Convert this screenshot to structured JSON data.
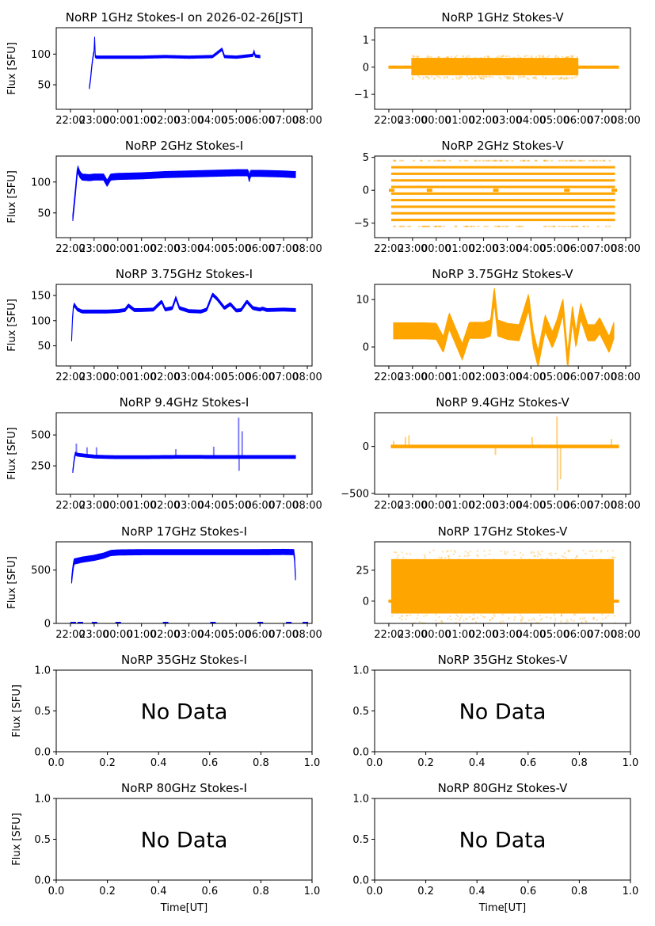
{
  "figure": {
    "date_label": "2026-02-26[JST]",
    "xlabel_bottom": "Time[UT]",
    "ylabel": "Flux [SFU]",
    "colors": {
      "stokes_i": "#0000ff",
      "stokes_v": "#ffa500",
      "axes": "#000000"
    },
    "time_ticks": [
      "22:00",
      "23:00",
      "00:00",
      "01:00",
      "02:00",
      "03:00",
      "04:00",
      "05:00",
      "06:00",
      "07:00",
      "08:00"
    ],
    "time_range_hours": [
      -2.6,
      8.2
    ],
    "no_data_text": "No Data"
  },
  "chart_data": [
    {
      "type": "scatter",
      "id": "1ghz-i",
      "title": "NoRP 1GHz Stokes-I on 2026-02-26[JST]",
      "ylabel": "Flux [SFU]",
      "xlabel": "",
      "ylim": [
        10,
        143
      ],
      "yticks": [
        50,
        100
      ],
      "color": "#0000ff",
      "x": [
        -1.2,
        -1.15,
        -1.1,
        -1.05,
        -1.0,
        -0.98,
        -0.95,
        -0.9,
        0,
        1,
        2,
        3,
        4,
        4.4,
        4.5,
        5,
        5.7,
        5.75,
        5.8,
        6.0
      ],
      "values": [
        45,
        60,
        80,
        95,
        105,
        128,
        96,
        95,
        95,
        95,
        96,
        95,
        96,
        108,
        96,
        95,
        98,
        104,
        97,
        96
      ],
      "band": 2
    },
    {
      "type": "scatter",
      "id": "1ghz-v",
      "title": "NoRP 1GHz Stokes-V",
      "ylabel": "",
      "xlabel": "",
      "ylim": [
        -1.55,
        1.45
      ],
      "yticks": [
        -1,
        0,
        1
      ],
      "color": "#ffa500",
      "x": [
        -2.0,
        -1.05,
        -1.05,
        6.0,
        6.0,
        7.7
      ],
      "values": [
        0,
        0,
        0,
        0,
        0,
        0
      ],
      "noisy_segment": {
        "from": -1.05,
        "to": 6.0,
        "center": 0.02,
        "half_width": 0.32
      },
      "band": 0.02
    },
    {
      "type": "scatter",
      "id": "2ghz-i",
      "title": "NoRP 2GHz Stokes-I",
      "ylabel": "Flux [SFU]",
      "xlabel": "",
      "ylim": [
        10,
        142
      ],
      "yticks": [
        50,
        100
      ],
      "color": "#0000ff",
      "x": [
        -1.9,
        -1.8,
        -1.7,
        -1.6,
        -1.5,
        -1.2,
        -1.0,
        -0.6,
        -0.45,
        -0.3,
        0,
        1,
        2,
        3,
        4,
        5,
        5.5,
        5.55,
        5.6,
        6,
        7,
        7.45,
        7.5
      ],
      "values": [
        42,
        80,
        122,
        112,
        108,
        107,
        108,
        108,
        98,
        108,
        109,
        110,
        112,
        113,
        114,
        115,
        115,
        105,
        114,
        114,
        113,
        112,
        112
      ],
      "band": 5
    },
    {
      "type": "scatter",
      "id": "2ghz-v",
      "title": "NoRP 2GHz Stokes-V",
      "ylabel": "",
      "xlabel": "",
      "ylim": [
        -7.2,
        5.2
      ],
      "yticks": [
        -5,
        0,
        5
      ],
      "color": "#ffa500",
      "levels": [
        -4.5,
        -3.5,
        -2.5,
        -1.5,
        -0.5,
        0.5,
        1.5,
        2.5,
        3.5
      ],
      "sparse_levels": [
        -5.5,
        4.5
      ],
      "x_range": [
        -1.9,
        7.55
      ],
      "values": [
        0,
        0,
        0,
        0,
        0
      ]
    },
    {
      "type": "scatter",
      "id": "3.75ghz-i",
      "title": "NoRP 3.75GHz Stokes-I",
      "ylabel": "Flux [SFU]",
      "xlabel": "",
      "ylim": [
        10,
        172
      ],
      "yticks": [
        50,
        100,
        150
      ],
      "color": "#0000ff",
      "x": [
        -1.95,
        -1.9,
        -1.85,
        -1.7,
        -1.5,
        -1,
        -0.5,
        0,
        0.3,
        0.45,
        0.7,
        1,
        1.5,
        1.85,
        2.0,
        2.3,
        2.45,
        2.6,
        3,
        3.5,
        3.75,
        4.0,
        4.2,
        4.5,
        4.75,
        5.0,
        5.2,
        5.45,
        5.7,
        6.0,
        6.1,
        6.3,
        7.0,
        7.5
      ],
      "values": [
        62,
        120,
        132,
        122,
        118,
        118,
        118,
        119,
        121,
        130,
        121,
        121,
        122,
        138,
        122,
        125,
        145,
        125,
        119,
        118,
        122,
        152,
        143,
        125,
        133,
        120,
        121,
        138,
        125,
        122,
        124,
        121,
        122,
        121
      ],
      "band": 3
    },
    {
      "type": "scatter",
      "id": "3.75ghz-v",
      "title": "NoRP 3.75GHz Stokes-V",
      "ylabel": "",
      "xlabel": "",
      "ylim": [
        -4,
        13.2
      ],
      "yticks": [
        0,
        10
      ],
      "color": "#ffa500",
      "x": [
        -1.8,
        -1.5,
        -1,
        -0.5,
        0,
        0.3,
        0.55,
        0.8,
        1.1,
        1.4,
        2.0,
        2.3,
        2.45,
        2.6,
        3.0,
        3.5,
        3.9,
        4.1,
        4.3,
        4.6,
        4.9,
        5.1,
        5.35,
        5.55,
        5.75,
        5.9,
        6.1,
        6.4,
        6.7,
        6.9,
        7.3,
        7.5
      ],
      "values": [
        3.4,
        3.4,
        3.4,
        3.4,
        3.3,
        0.5,
        5.5,
        2.5,
        -1,
        3.5,
        3.5,
        4,
        11,
        4,
        3.3,
        3,
        9.5,
        1.5,
        -2.5,
        5,
        1.5,
        4,
        8.5,
        -3,
        7,
        1.5,
        7.5,
        3,
        3,
        4.5,
        0.5,
        3.5
      ],
      "band": 1.7
    },
    {
      "type": "scatter",
      "id": "9.4ghz-i",
      "title": "NoRP 9.4GHz Stokes-I",
      "ylabel": "Flux [SFU]",
      "xlabel": "",
      "ylim": [
        20,
        680
      ],
      "yticks": [
        250,
        500
      ],
      "color": "#0000ff",
      "x": [
        -1.9,
        -1.85,
        -1.8,
        -1.7,
        -1.0,
        -0.5,
        0,
        1,
        2,
        3,
        4,
        5,
        5.2,
        5.3,
        6,
        7,
        7.5
      ],
      "values": [
        205,
        290,
        350,
        340,
        325,
        322,
        320,
        320,
        322,
        323,
        322,
        322,
        322,
        322,
        322,
        322,
        322
      ],
      "spikes": [
        [
          -1.75,
          430
        ],
        [
          -1.3,
          400
        ],
        [
          -0.9,
          400
        ],
        [
          2.45,
          385
        ],
        [
          4.05,
          405
        ],
        [
          5.1,
          640
        ],
        [
          5.12,
          210
        ],
        [
          5.25,
          530
        ]
      ],
      "band": 12
    },
    {
      "type": "scatter",
      "id": "9.4ghz-v",
      "title": "NoRP 9.4GHz Stokes-V",
      "ylabel": "",
      "xlabel": "",
      "ylim": [
        -510,
        360
      ],
      "yticks": [
        -500,
        0
      ],
      "color": "#ffa500",
      "x": [
        -1.9,
        7.7
      ],
      "values": [
        0,
        0
      ],
      "spikes": [
        [
          -1.8,
          60
        ],
        [
          -1.3,
          100
        ],
        [
          -1.15,
          120
        ],
        [
          2.5,
          -90
        ],
        [
          4.05,
          100
        ],
        [
          5.1,
          320
        ],
        [
          5.12,
          -470
        ],
        [
          5.25,
          -350
        ],
        [
          7.4,
          80
        ]
      ],
      "band": 15
    },
    {
      "type": "scatter",
      "id": "17ghz-i",
      "title": "NoRP 17GHz Stokes-I",
      "ylabel": "Flux [SFU]",
      "xlabel": "",
      "ylim": [
        0,
        765
      ],
      "yticks": [
        0,
        500
      ],
      "color": "#0000ff",
      "x": [
        -1.95,
        -1.9,
        -1.85,
        -1.5,
        -1.0,
        -0.6,
        -0.3,
        0,
        1,
        2,
        3,
        4,
        5,
        6,
        7,
        7.45,
        7.5
      ],
      "values": [
        400,
        510,
        580,
        598,
        615,
        635,
        660,
        665,
        668,
        668,
        668,
        668,
        668,
        668,
        670,
        668,
        430
      ],
      "zero_marks": [
        -1.9,
        -1.6,
        -1.0,
        0.0,
        2.0,
        4.0,
        6.0,
        7.9,
        7.2
      ],
      "band": 25
    },
    {
      "type": "scatter",
      "id": "17ghz-v",
      "title": "NoRP 17GHz Stokes-V",
      "ylabel": "",
      "xlabel": "",
      "ylim": [
        -18,
        48
      ],
      "yticks": [
        0,
        25
      ],
      "color": "#ffa500",
      "x": [
        -2.0,
        7.7
      ],
      "values": [
        0,
        0
      ],
      "noisy_segment": {
        "from": -1.9,
        "to": 7.5,
        "center": 12,
        "half_width": 22
      },
      "band": 0.5
    },
    {
      "type": "empty",
      "id": "35ghz-i",
      "title": "NoRP 35GHz Stokes-I",
      "ylabel": "Flux [SFU]",
      "xlabel": "",
      "xlim": [
        0,
        1
      ],
      "ylim": [
        0,
        1
      ],
      "xticks": [
        "0.0",
        "0.2",
        "0.4",
        "0.6",
        "0.8",
        "1.0"
      ],
      "yticks": [
        "0.0",
        "0.5",
        "1.0"
      ],
      "annotation": "No Data"
    },
    {
      "type": "empty",
      "id": "35ghz-v",
      "title": "NoRP 35GHz Stokes-V",
      "ylabel": "",
      "xlabel": "",
      "xlim": [
        0,
        1
      ],
      "ylim": [
        0,
        1
      ],
      "xticks": [
        "0.0",
        "0.2",
        "0.4",
        "0.6",
        "0.8",
        "1.0"
      ],
      "yticks": [
        "0.0",
        "0.5",
        "1.0"
      ],
      "annotation": "No Data"
    },
    {
      "type": "empty",
      "id": "80ghz-i",
      "title": "NoRP 80GHz Stokes-I",
      "ylabel": "Flux [SFU]",
      "xlabel": "Time[UT]",
      "xlim": [
        0,
        1
      ],
      "ylim": [
        0,
        1
      ],
      "xticks": [
        "0.0",
        "0.2",
        "0.4",
        "0.6",
        "0.8",
        "1.0"
      ],
      "yticks": [
        "0.0",
        "0.5",
        "1.0"
      ],
      "annotation": "No Data"
    },
    {
      "type": "empty",
      "id": "80ghz-v",
      "title": "NoRP 80GHz Stokes-V",
      "ylabel": "",
      "xlabel": "Time[UT]",
      "xlim": [
        0,
        1
      ],
      "ylim": [
        0,
        1
      ],
      "xticks": [
        "0.0",
        "0.2",
        "0.4",
        "0.6",
        "0.8",
        "1.0"
      ],
      "yticks": [
        "0.0",
        "0.5",
        "1.0"
      ],
      "annotation": "No Data"
    }
  ]
}
